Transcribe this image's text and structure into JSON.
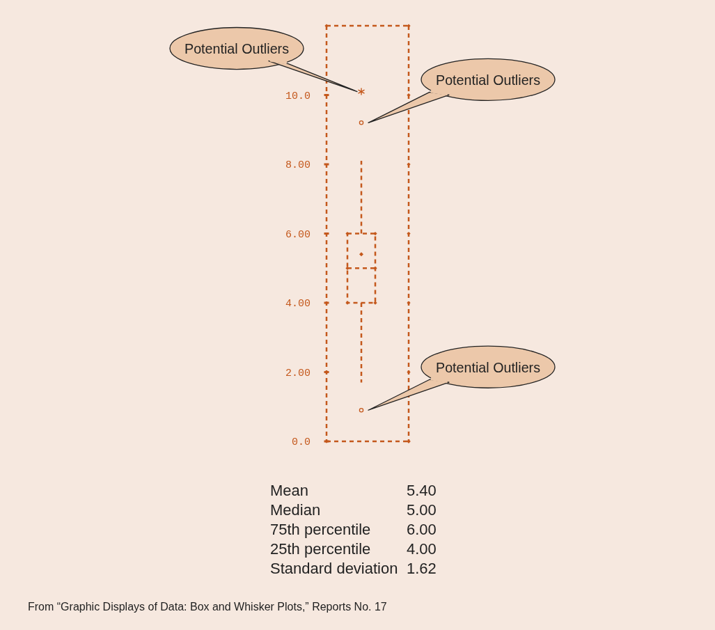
{
  "chart_data": {
    "type": "box",
    "categories": [
      null
    ],
    "color": "#c4581c",
    "ylim": [
      0,
      12
    ],
    "yticks": [
      {
        "value": 0,
        "label": "0.0"
      },
      {
        "value": 2,
        "label": "2.00"
      },
      {
        "value": 4,
        "label": "4.00"
      },
      {
        "value": 6,
        "label": "6.00"
      },
      {
        "value": 8,
        "label": "8.00"
      },
      {
        "value": 10,
        "label": "10.0"
      }
    ],
    "boxes": [
      {
        "low": 1.7,
        "q1": 4.0,
        "median": 5.0,
        "q3": 6.0,
        "high": 8.1,
        "mean": 5.4,
        "outliers": [
          10.1,
          9.2,
          0.9
        ]
      }
    ],
    "annotations": [
      "Potential Outliers",
      "Potential Outliers",
      "Potential Outliers",
      "Mean",
      "5.40",
      "Median",
      "5.00",
      "75th percentile",
      "6.00",
      "25th percentile",
      "4.00",
      "Standard deviation",
      "1.62",
      "From “Graphic Displays of Data: Box and Whisker Plots,” Reports No. 17"
    ]
  }
}
